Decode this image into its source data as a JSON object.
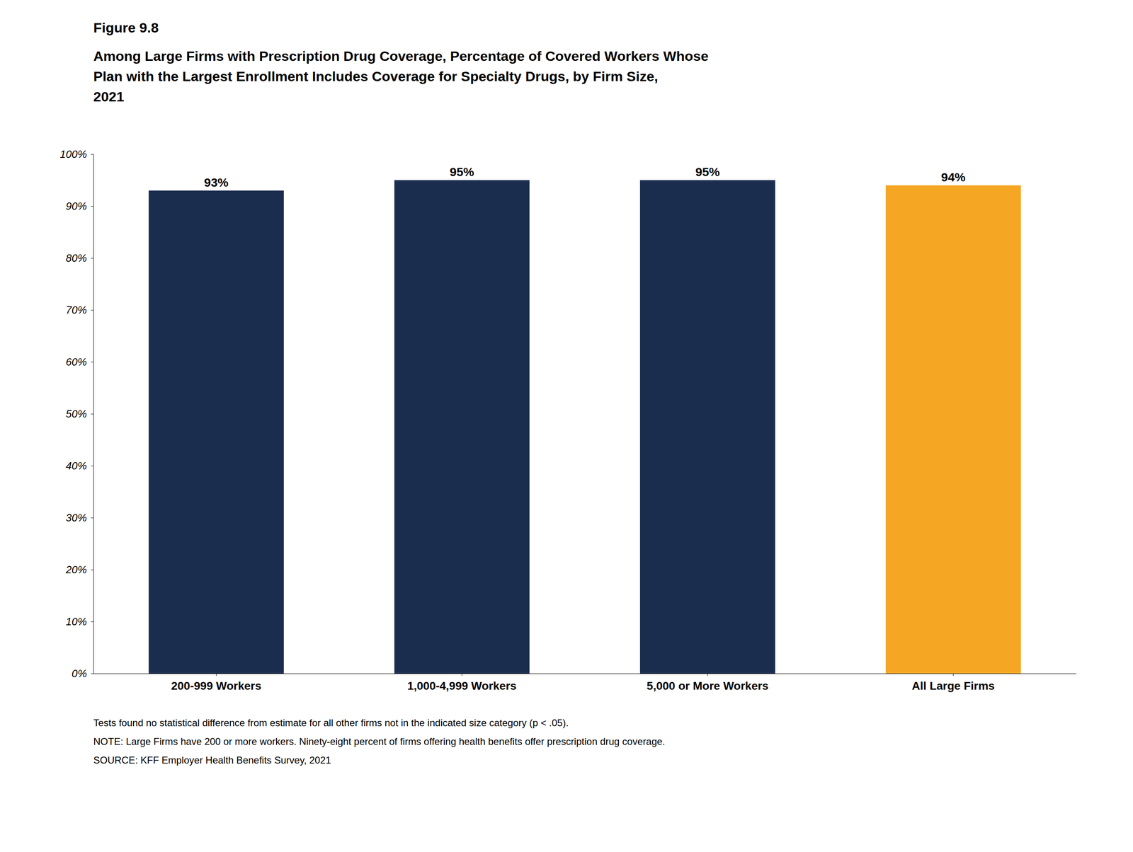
{
  "chart_data": {
    "type": "bar",
    "subtitle": "Figure 9.8",
    "title": "Among Large Firms with Prescription Drug Coverage, Percentage of Covered Workers Whose\nPlan with the Largest Enrollment Includes Coverage for Specialty Drugs, by Firm Size,\n2021",
    "categories": [
      "200-999 Workers",
      "1,000-4,999 Workers",
      "5,000 or More Workers",
      "All Large Firms"
    ],
    "values": [
      93,
      95,
      95,
      94
    ],
    "value_labels": [
      "93%",
      "95%",
      "95%",
      "94%"
    ],
    "colors": [
      "#1b2d4f",
      "#1b2d4f",
      "#1b2d4f",
      "#f5a623"
    ],
    "data_labels": true,
    "ylim": [
      0,
      100
    ],
    "yticks": [
      {
        "value": 0,
        "label": "0%"
      },
      {
        "value": 10,
        "label": "10%"
      },
      {
        "value": 20,
        "label": "20%"
      },
      {
        "value": 30,
        "label": "30%"
      },
      {
        "value": 40,
        "label": "40%"
      },
      {
        "value": 50,
        "label": "50%"
      },
      {
        "value": 60,
        "label": "60%"
      },
      {
        "value": 70,
        "label": "70%"
      },
      {
        "value": 80,
        "label": "80%"
      },
      {
        "value": 90,
        "label": "90%"
      },
      {
        "value": 100,
        "label": "100%"
      }
    ],
    "grid": false,
    "annotations": [
      "Tests found no statistical difference from estimate for all other firms not in the indicated size category (p < .05).",
      "NOTE: Large Firms have 200 or more workers. Ninety-eight percent of firms offering health benefits offer prescription drug coverage.",
      "SOURCE: KFF Employer Health Benefits Survey, 2021"
    ]
  }
}
